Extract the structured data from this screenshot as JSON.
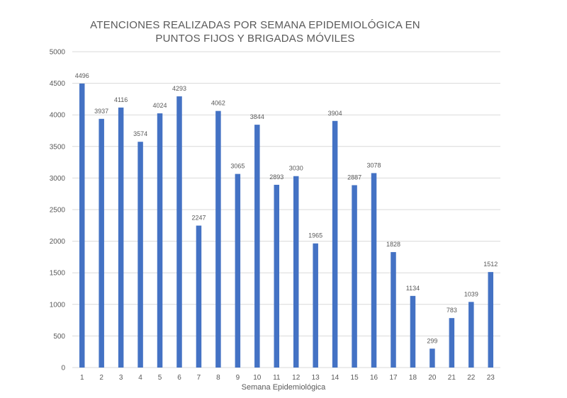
{
  "chart_data": {
    "type": "bar",
    "title_line1": "ATENCIONES REALIZADAS POR SEMANA EPIDEMIOLÓGICA EN",
    "title_line2": "PUNTOS FIJOS Y BRIGADAS MÓVILES",
    "xlabel": "Semana Epidemiológica",
    "ylabel": "",
    "ylim": [
      0,
      5000
    ],
    "yticks": [
      "0",
      "500",
      "1000",
      "1500",
      "2000",
      "2500",
      "3000",
      "3500",
      "4000",
      "4500",
      "5000"
    ],
    "categories": [
      "1",
      "2",
      "3",
      "4",
      "5",
      "6",
      "7",
      "8",
      "9",
      "10",
      "11",
      "12",
      "13",
      "14",
      "15",
      "16",
      "17",
      "18",
      "20",
      "21",
      "22",
      "23"
    ],
    "values": [
      4496,
      3937,
      4116,
      3574,
      4024,
      4293,
      2247,
      4062,
      3065,
      3844,
      2893,
      3030,
      1965,
      3904,
      2887,
      3078,
      1828,
      1134,
      299,
      783,
      1039,
      1512
    ],
    "grid": true,
    "legend": "none",
    "bar_color": "#4472C4",
    "grid_color": "#D9D9D9",
    "text_color": "#595959"
  }
}
